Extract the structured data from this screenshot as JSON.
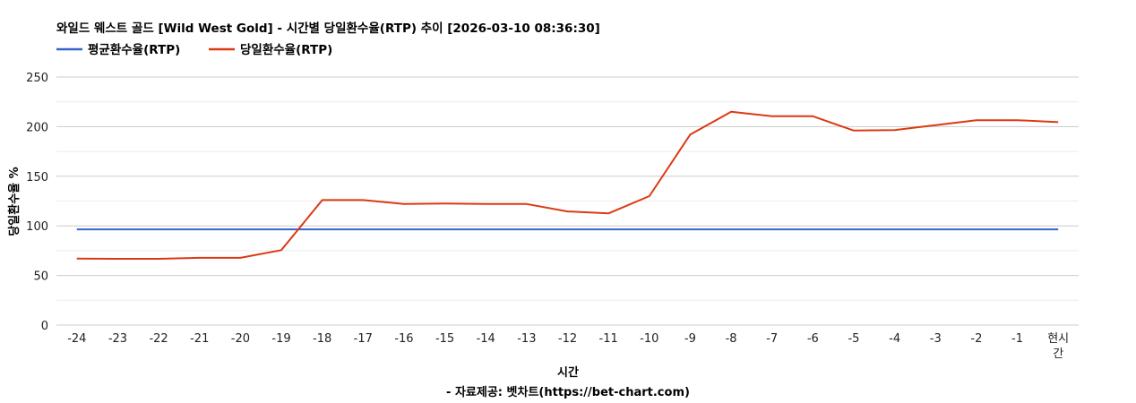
{
  "chart_data": {
    "type": "line",
    "title": "와일드 웨스트 골드 [Wild West Gold] - 시간별 당일환수율(RTP) 추이 [2026-03-10 08:36:30]",
    "xlabel": "시간",
    "ylabel": "당일환수율 %",
    "source": "- 자료제공: 벳차트(https://bet-chart.com)",
    "categories": [
      "-24",
      "-23",
      "-22",
      "-21",
      "-20",
      "-19",
      "-18",
      "-17",
      "-16",
      "-15",
      "-14",
      "-13",
      "-12",
      "-11",
      "-10",
      "-9",
      "-8",
      "-7",
      "-6",
      "-5",
      "-4",
      "-3",
      "-2",
      "-1",
      "현시간"
    ],
    "ylim": [
      0,
      250
    ],
    "yticks": [
      0,
      50,
      100,
      150,
      200,
      250
    ],
    "grid": true,
    "legend_position": "top-left",
    "series": [
      {
        "name": "평균환수율(RTP)",
        "color": "#3366cc",
        "values": [
          96.5,
          96.5,
          96.5,
          96.5,
          96.5,
          96.5,
          96.5,
          96.5,
          96.5,
          96.5,
          96.5,
          96.5,
          96.5,
          96.5,
          96.5,
          96.5,
          96.5,
          96.5,
          96.5,
          96.5,
          96.5,
          96.5,
          96.5,
          96.5,
          96.5
        ]
      },
      {
        "name": "당일환수율(RTP)",
        "color": "#dc3912",
        "values": [
          67,
          66.8,
          66.8,
          67.8,
          67.8,
          75.5,
          126,
          126,
          122,
          122.5,
          122,
          122,
          114.5,
          112.5,
          130,
          192,
          215,
          210.5,
          210.5,
          196,
          196.5,
          201.5,
          206.5,
          206.5,
          204.5
        ]
      }
    ]
  }
}
